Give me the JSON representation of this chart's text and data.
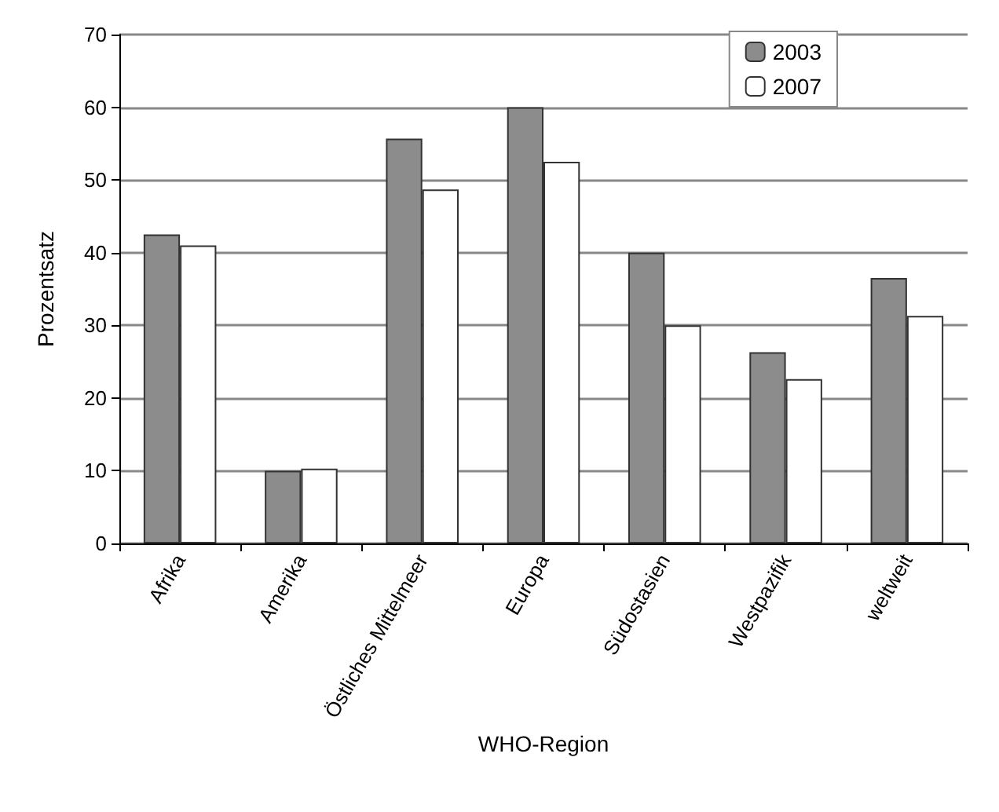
{
  "chart_data": {
    "type": "bar",
    "xlabel": "WHO-Region",
    "ylabel": "Prozentsatz",
    "categories": [
      "Afrika",
      "Amerika",
      "Östliches Mittelmeer",
      "Europa",
      "Südostasien",
      "Westpazifik",
      "weltweit"
    ],
    "series": [
      {
        "name": "2003",
        "color": "#8c8c8c",
        "values": [
          42.5,
          10,
          55.7,
          60,
          40,
          26.3,
          36.5
        ]
      },
      {
        "name": "2007",
        "color": "#ffffff",
        "values": [
          41,
          10.3,
          48.7,
          52.5,
          30,
          22.6,
          31.3
        ]
      }
    ],
    "ylim": [
      0,
      70
    ],
    "yticks": [
      0,
      10,
      20,
      30,
      40,
      50,
      60,
      70
    ],
    "grid": "y",
    "legend": "top right"
  }
}
